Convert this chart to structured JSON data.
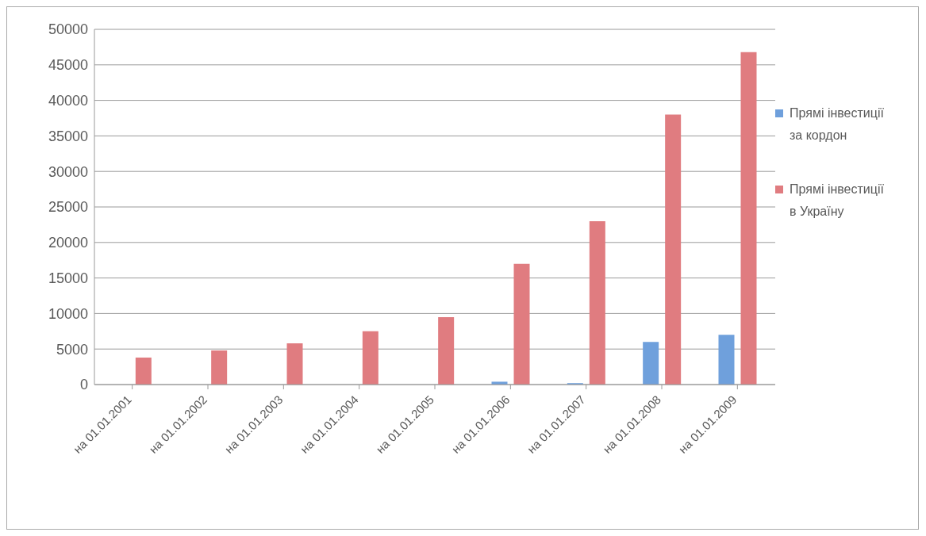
{
  "chart_data": {
    "type": "bar",
    "categories": [
      "на 01.01.2001",
      "на 01.01.2002",
      "на 01.01.2003",
      "на 01.01.2004",
      "на 01.01.2005",
      "на 01.01.2006",
      "на 01.01.2007",
      "на 01.01.2008",
      "на 01.01.2009"
    ],
    "series": [
      {
        "name": "Прямі інвестиції за кордон",
        "color": "#6fa0dc",
        "values": [
          null,
          null,
          null,
          null,
          null,
          400,
          200,
          6000,
          7000
        ]
      },
      {
        "name": "Прямі інвестиції в Україну",
        "color": "#e07c80",
        "values": [
          3800,
          4800,
          5800,
          7500,
          9500,
          17000,
          23000,
          38000,
          46800
        ]
      }
    ],
    "ylim": [
      0,
      50000
    ],
    "yticks": [
      0,
      5000,
      10000,
      15000,
      20000,
      25000,
      30000,
      35000,
      40000,
      45000,
      50000
    ],
    "grid": "y",
    "legend": "right"
  }
}
